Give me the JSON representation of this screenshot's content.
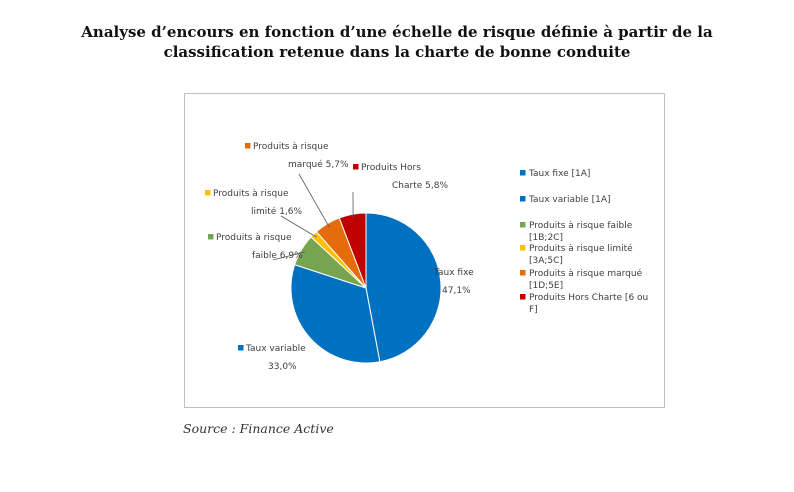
{
  "page": {
    "title_line1": "Analyse d’encours en fonction d’une échelle de risque définie à partir de la",
    "title_line2": "classification retenue dans la charte de bonne conduite",
    "source": "Source : Finance Active"
  },
  "chart_data": {
    "type": "pie",
    "title": "",
    "legend_position": "right",
    "slices": [
      {
        "name": "Taux fixe [1A]",
        "value": 47.1,
        "color": "#0070C0",
        "label_name": "Taux fixe",
        "label_value": "47,1%"
      },
      {
        "name": "Taux variable [1A]",
        "value": 33.0,
        "color": "#0070C0",
        "label_name": "Taux variable",
        "label_value": "33,0%"
      },
      {
        "name": "Produits à risque faible [1B;2C]",
        "value": 6.9,
        "color": "#77A451",
        "label_name": "Produits à risque",
        "label_value": "faible 6,9%"
      },
      {
        "name": "Produits à risque limité [3A;5C]",
        "value": 1.6,
        "color": "#FFC000",
        "label_name": "Produits à risque",
        "label_value": "limité 1,6%"
      },
      {
        "name": "Produits à risque marqué [1D;5E]",
        "value": 5.7,
        "color": "#E46C0A",
        "label_name": "Produits à risque",
        "label_value": "marqué 5,7%"
      },
      {
        "name": "Produits Hors Charte [6 ou F]",
        "value": 5.8,
        "color": "#C00000",
        "label_name": "Produits Hors",
        "label_value": "Charte 5,8%"
      }
    ],
    "legend": [
      {
        "line1": "Taux fixe [1A]",
        "line2": "",
        "color": "#0070C0"
      },
      {
        "line1": "Taux variable [1A]",
        "line2": "",
        "color": "#0070C0"
      },
      {
        "line1": "Produits à risque faible",
        "line2": "[1B;2C]",
        "color": "#77A451"
      },
      {
        "line1": "Produits à risque limité",
        "line2": "[3A;5C]",
        "color": "#FFC000"
      },
      {
        "line1": "Produits à risque marqué",
        "line2": "[1D;5E]",
        "color": "#E46C0A"
      },
      {
        "line1": "Produits Hors Charte [6 ou",
        "line2": "F]",
        "color": "#C00000"
      }
    ]
  }
}
